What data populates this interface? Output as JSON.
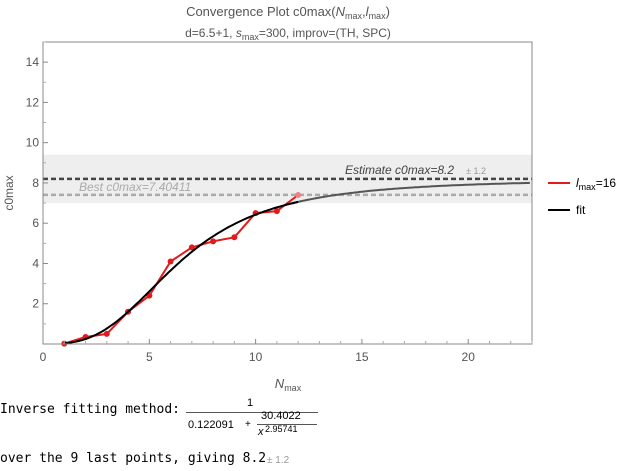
{
  "chart_data": {
    "type": "line",
    "title": "Convergence Plot c0max(N",
    "title_parts": {
      "prefix": "Convergence Plot c0max(",
      "n": "N",
      "n_sub": "max",
      "sep": ",",
      "l": "l",
      "l_sub": "max",
      "suffix": ")"
    },
    "subtitle_parts": {
      "a": "d=6.5+1, ",
      "s": "s",
      "s_sub": "max",
      "b": "=300, improv=(TH, SPC)"
    },
    "xlabel": "N",
    "xlabel_sub": "max",
    "ylabel": "c0max",
    "xlim": [
      0,
      23
    ],
    "ylim": [
      0,
      15
    ],
    "x_ticks": [
      0,
      5,
      10,
      15,
      20
    ],
    "y_ticks": [
      2,
      4,
      6,
      8,
      10,
      12,
      14
    ],
    "grid": false,
    "legend_position": "right",
    "series": [
      {
        "name": "l",
        "name_sub": "max",
        "name_suffix": "=16",
        "color": "#e31a1c",
        "x": [
          1,
          2,
          3,
          4,
          5,
          6,
          7,
          8,
          9,
          10,
          11,
          12
        ],
        "y": [
          0.02,
          0.35,
          0.5,
          1.6,
          2.4,
          4.1,
          4.8,
          5.1,
          5.3,
          6.5,
          6.6,
          7.4
        ]
      },
      {
        "name": "fit",
        "color": "#000000",
        "formula": {
          "a": 0.122091,
          "b": 30.4022,
          "p": 2.95741
        }
      }
    ],
    "reference_lines": {
      "estimate": {
        "value": 8.2,
        "error": 1.2,
        "label": "Estimate c0max=8.2",
        "error_label": "± 1.2",
        "color": "#444444"
      },
      "best": {
        "value": 7.40411,
        "label": "Best c0max=7.40411",
        "color": "#aaaaaa"
      },
      "band": [
        7.0,
        9.4
      ]
    }
  },
  "footer": {
    "method_label": "Inverse fitting method:",
    "numerator": "1",
    "denominator_a": "0.122091",
    "plus": "+",
    "frac_num": "30.4022",
    "frac_den_base": "x",
    "frac_den_exp": "2.95741",
    "summary": "over the 9 last points, giving 8.2",
    "summary_error": "± 1.2"
  }
}
